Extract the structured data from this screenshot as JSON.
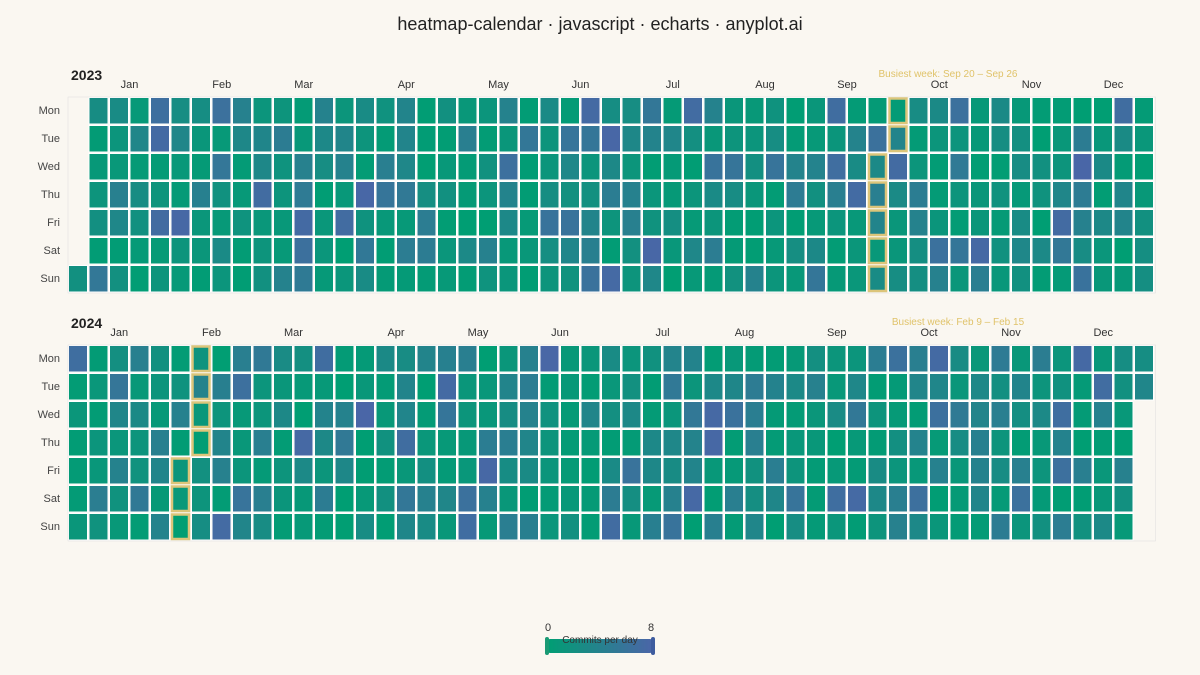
{
  "title": "heatmap-calendar · javascript · echarts · anyplot.ai",
  "legend": {
    "min_label": "0",
    "max_label": "8",
    "title": "Commits per day"
  },
  "colors": {
    "background": "#faf7f1",
    "low": "#009e73",
    "high": "#4b65a8",
    "highlight": "#dcc57a",
    "cell_border": "#ffffff"
  },
  "day_labels": [
    "Mon",
    "Tue",
    "Wed",
    "Thu",
    "Fri",
    "Sat",
    "Sun"
  ],
  "chart_data": [
    {
      "type": "heatmap",
      "calendar": "year",
      "year": "2023",
      "value_range": [
        0,
        8
      ],
      "months": [
        "Jan",
        "Feb",
        "Mar",
        "Apr",
        "May",
        "Jun",
        "Jul",
        "Aug",
        "Sep",
        "Oct",
        "Nov",
        "Dec"
      ],
      "busiest_week": "Busiest week: Sep 20 – Sep 26",
      "weeks": 53,
      "first_weekday_index": 6,
      "last_day": "2023-12-31"
    },
    {
      "type": "heatmap",
      "calendar": "year",
      "year": "2024",
      "value_range": [
        0,
        8
      ],
      "months": [
        "Jan",
        "Feb",
        "Mar",
        "Apr",
        "May",
        "Jun",
        "Jul",
        "Aug",
        "Sep",
        "Oct",
        "Nov",
        "Dec"
      ],
      "busiest_week": "Busiest week: Feb 9 – Feb 15",
      "weeks": 53,
      "first_weekday_index": 0,
      "last_day": "2024-12-31"
    }
  ]
}
